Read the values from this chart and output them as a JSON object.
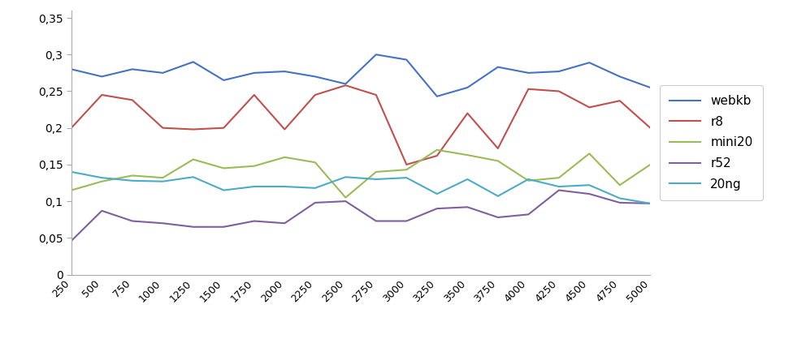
{
  "x": [
    250,
    500,
    750,
    1000,
    1250,
    1500,
    1750,
    2000,
    2250,
    2500,
    2750,
    3000,
    3250,
    3500,
    3750,
    4000,
    4250,
    4500,
    4750,
    5000
  ],
  "webkb": [
    0.28,
    0.27,
    0.28,
    0.275,
    0.29,
    0.265,
    0.275,
    0.277,
    0.27,
    0.26,
    0.3,
    0.293,
    0.243,
    0.255,
    0.283,
    0.275,
    0.277,
    0.289,
    0.27,
    0.255
  ],
  "r8": [
    0.2,
    0.245,
    0.238,
    0.2,
    0.198,
    0.2,
    0.245,
    0.198,
    0.245,
    0.258,
    0.245,
    0.15,
    0.162,
    0.22,
    0.172,
    0.253,
    0.25,
    0.228,
    0.237,
    0.2
  ],
  "mini20": [
    0.115,
    0.127,
    0.135,
    0.132,
    0.157,
    0.145,
    0.148,
    0.16,
    0.153,
    0.105,
    0.14,
    0.143,
    0.17,
    0.163,
    0.155,
    0.128,
    0.132,
    0.165,
    0.122,
    0.15
  ],
  "r52": [
    0.046,
    0.087,
    0.073,
    0.07,
    0.065,
    0.065,
    0.073,
    0.07,
    0.098,
    0.1,
    0.073,
    0.073,
    0.09,
    0.092,
    0.078,
    0.082,
    0.115,
    0.11,
    0.098,
    0.097
  ],
  "20ng": [
    0.14,
    0.132,
    0.128,
    0.127,
    0.133,
    0.115,
    0.12,
    0.12,
    0.118,
    0.133,
    0.13,
    0.132,
    0.11,
    0.13,
    0.107,
    0.13,
    0.12,
    0.122,
    0.104,
    0.097
  ],
  "colors": {
    "webkb": "#4472C4",
    "r8": "#C0504D",
    "mini20": "#9BBB59",
    "r52": "#7F5F9F",
    "20ng": "#4BACC6"
  },
  "ylim": [
    0,
    0.36
  ],
  "yticks": [
    0,
    0.05,
    0.1,
    0.15,
    0.2,
    0.25,
    0.3,
    0.35
  ],
  "ytick_labels": [
    "0",
    "0,05",
    "0,1",
    "0,15",
    "0,2",
    "0,25",
    "0,3",
    "0,35"
  ],
  "background_color": "#FFFFFF",
  "series_order": [
    "webkb",
    "r8",
    "mini20",
    "r52",
    "20ng"
  ]
}
